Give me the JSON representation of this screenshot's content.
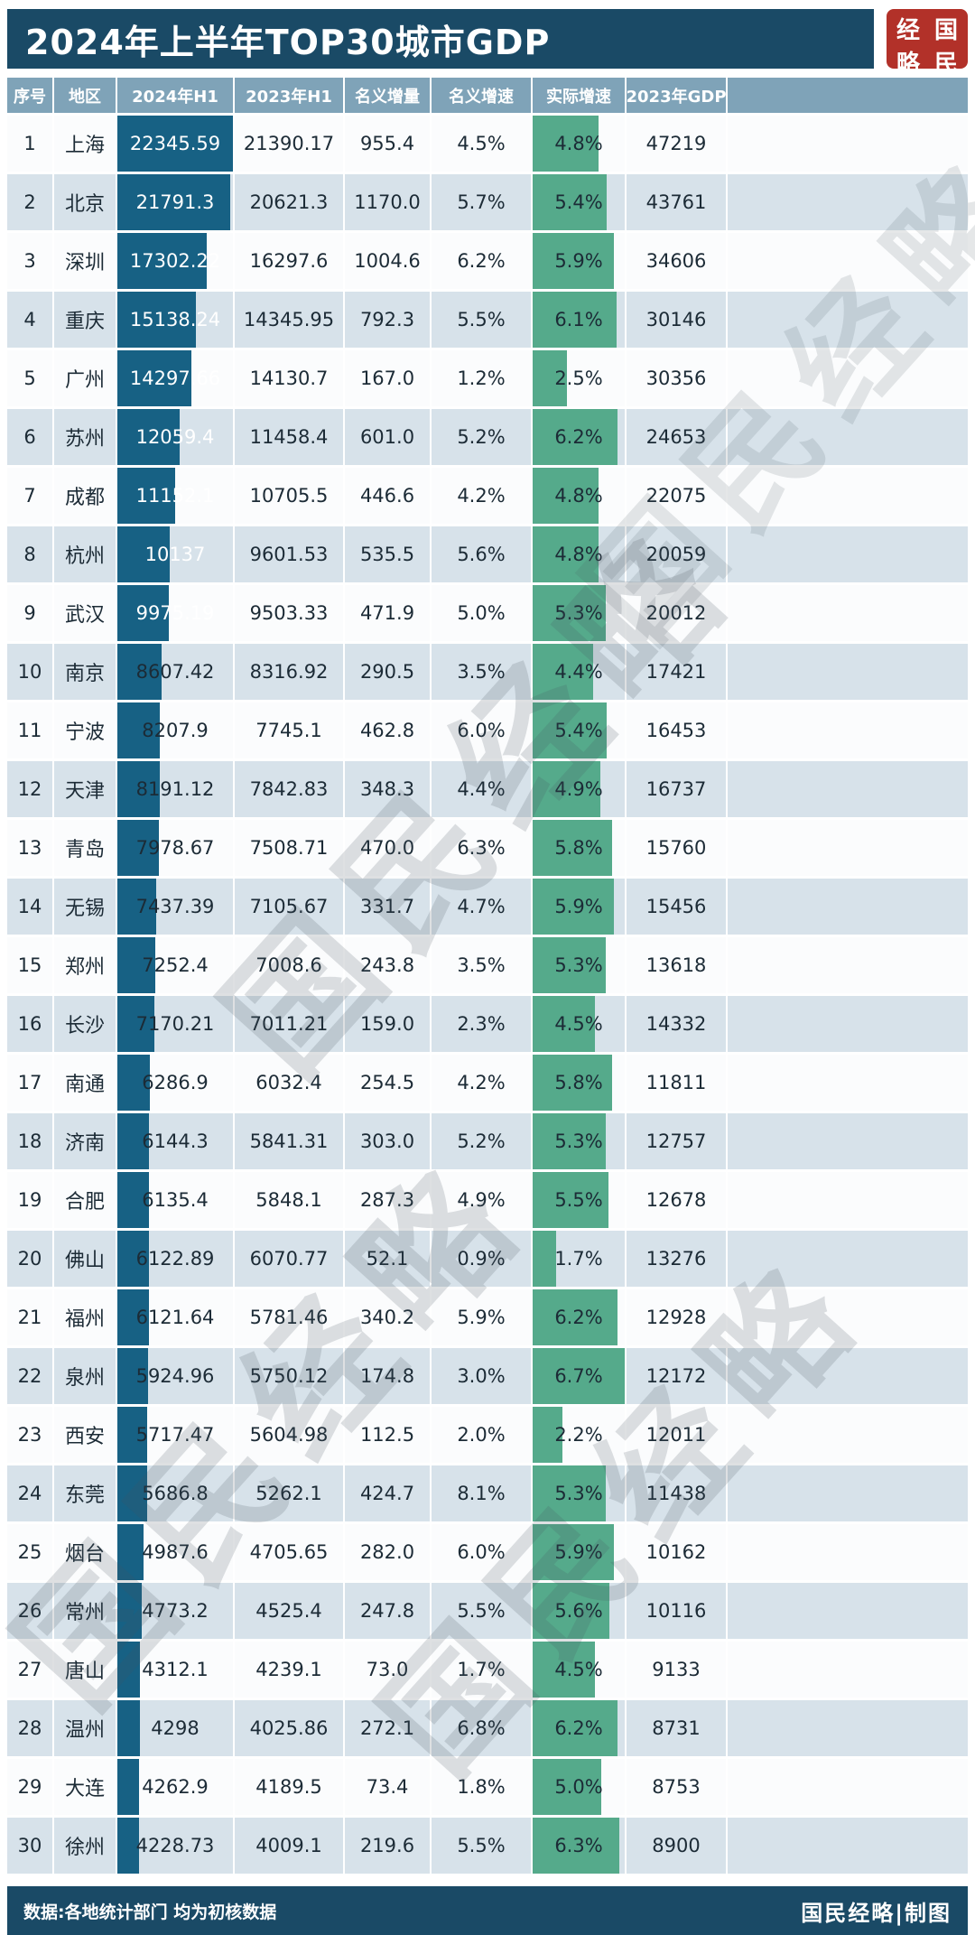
{
  "title": "2024年上半年TOP30城市GDP",
  "stamp": {
    "chars": [
      "经",
      "国",
      "略",
      "民"
    ]
  },
  "watermark": {
    "text": "国民经略"
  },
  "footer": {
    "left": "数据:各地统计部门 均为初核数据",
    "right": "国民经略|制图"
  },
  "colors": {
    "title_bg": "#1a4a66",
    "header_bg": "#7fa3b8",
    "stripe_even": "#d7e2ea",
    "stripe_odd": "#fbfcfd",
    "bar_2024": "#176184",
    "bar_real_growth": "#55aa8b",
    "stamp_red": "#b23129",
    "footer_bg": "#1a4a66"
  },
  "chart_data": {
    "type": "table",
    "title": "2024年上半年TOP30城市GDP",
    "columns": [
      "序号",
      "地区",
      "2024年H1",
      "2023年H1",
      "名义增量",
      "名义增速",
      "实际增速",
      "2023年GDP"
    ],
    "bar_columns": [
      {
        "column": "2024年H1",
        "scale": "linear from 0 to max 22345.59",
        "color": "#176184"
      },
      {
        "column": "实际增速",
        "scale": "linear from 0 to max 6.7%",
        "color": "#55aa8b"
      }
    ],
    "rows": [
      [
        "1",
        "上海",
        "22345.59",
        "21390.17",
        "955.4",
        "4.5%",
        "4.8%",
        "47219"
      ],
      [
        "2",
        "北京",
        "21791.3",
        "20621.3",
        "1170.0",
        "5.7%",
        "5.4%",
        "43761"
      ],
      [
        "3",
        "深圳",
        "17302.22",
        "16297.6",
        "1004.6",
        "6.2%",
        "5.9%",
        "34606"
      ],
      [
        "4",
        "重庆",
        "15138.24",
        "14345.95",
        "792.3",
        "5.5%",
        "6.1%",
        "30146"
      ],
      [
        "5",
        "广州",
        "14297.66",
        "14130.7",
        "167.0",
        "1.2%",
        "2.5%",
        "30356"
      ],
      [
        "6",
        "苏州",
        "12059.4",
        "11458.4",
        "601.0",
        "5.2%",
        "6.2%",
        "24653"
      ],
      [
        "7",
        "成都",
        "11152.1",
        "10705.5",
        "446.6",
        "4.2%",
        "4.8%",
        "22075"
      ],
      [
        "8",
        "杭州",
        "10137",
        "9601.53",
        "535.5",
        "5.6%",
        "4.8%",
        "20059"
      ],
      [
        "9",
        "武汉",
        "9975.19",
        "9503.33",
        "471.9",
        "5.0%",
        "5.3%",
        "20012"
      ],
      [
        "10",
        "南京",
        "8607.42",
        "8316.92",
        "290.5",
        "3.5%",
        "4.4%",
        "17421"
      ],
      [
        "11",
        "宁波",
        "8207.9",
        "7745.1",
        "462.8",
        "6.0%",
        "5.4%",
        "16453"
      ],
      [
        "12",
        "天津",
        "8191.12",
        "7842.83",
        "348.3",
        "4.4%",
        "4.9%",
        "16737"
      ],
      [
        "13",
        "青岛",
        "7978.67",
        "7508.71",
        "470.0",
        "6.3%",
        "5.8%",
        "15760"
      ],
      [
        "14",
        "无锡",
        "7437.39",
        "7105.67",
        "331.7",
        "4.7%",
        "5.9%",
        "15456"
      ],
      [
        "15",
        "郑州",
        "7252.4",
        "7008.6",
        "243.8",
        "3.5%",
        "5.3%",
        "13618"
      ],
      [
        "16",
        "长沙",
        "7170.21",
        "7011.21",
        "159.0",
        "2.3%",
        "4.5%",
        "14332"
      ],
      [
        "17",
        "南通",
        "6286.9",
        "6032.4",
        "254.5",
        "4.2%",
        "5.8%",
        "11811"
      ],
      [
        "18",
        "济南",
        "6144.3",
        "5841.31",
        "303.0",
        "5.2%",
        "5.3%",
        "12757"
      ],
      [
        "19",
        "合肥",
        "6135.4",
        "5848.1",
        "287.3",
        "4.9%",
        "5.5%",
        "12678"
      ],
      [
        "20",
        "佛山",
        "6122.89",
        "6070.77",
        "52.1",
        "0.9%",
        "1.7%",
        "13276"
      ],
      [
        "21",
        "福州",
        "6121.64",
        "5781.46",
        "340.2",
        "5.9%",
        "6.2%",
        "12928"
      ],
      [
        "22",
        "泉州",
        "5924.96",
        "5750.12",
        "174.8",
        "3.0%",
        "6.7%",
        "12172"
      ],
      [
        "23",
        "西安",
        "5717.47",
        "5604.98",
        "112.5",
        "2.0%",
        "2.2%",
        "12011"
      ],
      [
        "24",
        "东莞",
        "5686.8",
        "5262.1",
        "424.7",
        "8.1%",
        "5.3%",
        "11438"
      ],
      [
        "25",
        "烟台",
        "4987.6",
        "4705.65",
        "282.0",
        "6.0%",
        "5.9%",
        "10162"
      ],
      [
        "26",
        "常州",
        "4773.2",
        "4525.4",
        "247.8",
        "5.5%",
        "5.6%",
        "10116"
      ],
      [
        "27",
        "唐山",
        "4312.1",
        "4239.1",
        "73.0",
        "1.7%",
        "4.5%",
        "9133"
      ],
      [
        "28",
        "温州",
        "4298",
        "4025.86",
        "272.1",
        "6.8%",
        "6.2%",
        "8731"
      ],
      [
        "29",
        "大连",
        "4262.9",
        "4189.5",
        "73.4",
        "1.8%",
        "5.0%",
        "8753"
      ],
      [
        "30",
        "徐州",
        "4228.73",
        "4009.1",
        "219.6",
        "5.5%",
        "6.3%",
        "8900"
      ]
    ],
    "source_note": "数据:各地统计部门 均为初核数据"
  }
}
